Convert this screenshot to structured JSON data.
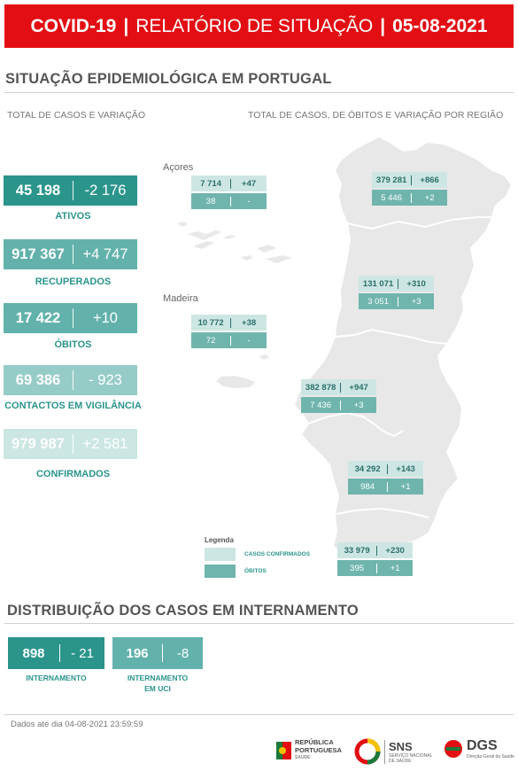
{
  "header": {
    "covid": "COVID-19",
    "sep": "|",
    "title": "RELATÓRIO DE SITUAÇÃO",
    "date": "05-08-2021"
  },
  "section1": {
    "title": "SITUAÇÃO EPIDEMIOLÓGICA EM PORTUGAL",
    "left_subtitle": "TOTAL DE CASOS E VARIAÇÃO",
    "right_subtitle": "TOTAL DE CASOS, DE ÓBITOS E VARIAÇÃO POR REGIÃO"
  },
  "kpis": [
    {
      "value": "45 198",
      "delta": "-2 176",
      "label": "ATIVOS"
    },
    {
      "value": "917 367",
      "delta": "+4 747",
      "label": "RECUPERADOS"
    },
    {
      "value": "17 422",
      "delta": "+10",
      "label": "ÓBITOS"
    },
    {
      "value": "69 386",
      "delta": "- 923",
      "label": "CONTACTOS EM VIGILÂNCIA"
    },
    {
      "value": "979 987",
      "delta": "+2 581",
      "label": "CONFIRMADOS"
    }
  ],
  "region_labels": {
    "acores": "Açores",
    "madeira": "Madeira"
  },
  "regions": [
    {
      "id": "acores",
      "cases": "7 714",
      "cases_delta": "+47",
      "deaths": "38",
      "deaths_delta": "-"
    },
    {
      "id": "madeira",
      "cases": "10 772",
      "cases_delta": "+38",
      "deaths": "72",
      "deaths_delta": "-"
    },
    {
      "id": "norte",
      "cases": "379 281",
      "cases_delta": "+866",
      "deaths": "5 446",
      "deaths_delta": "+2"
    },
    {
      "id": "centro",
      "cases": "131 071",
      "cases_delta": "+310",
      "deaths": "3 051",
      "deaths_delta": "+3"
    },
    {
      "id": "lvt",
      "cases": "382 878",
      "cases_delta": "+947",
      "deaths": "7 436",
      "deaths_delta": "+3"
    },
    {
      "id": "alentejo",
      "cases": "34 292",
      "cases_delta": "+143",
      "deaths": "984",
      "deaths_delta": "+1"
    },
    {
      "id": "algarve",
      "cases": "33 979",
      "cases_delta": "+230",
      "deaths": "395",
      "deaths_delta": "+1"
    }
  ],
  "legend": {
    "title": "Legenda",
    "cases": "CASOS CONFIRMADOS",
    "deaths": "ÓBITOS"
  },
  "section2": {
    "title": "DISTRIBUIÇÃO DOS CASOS EM INTERNAMENTO"
  },
  "hospital": [
    {
      "value": "898",
      "delta": "- 21",
      "label1": "INTERNAMENTO",
      "label2": ""
    },
    {
      "value": "196",
      "delta": "-8",
      "label1": "INTERNAMENTO",
      "label2": "EM UCI"
    }
  ],
  "footnote": "Dados até dia 04-08-2021 23:59:59",
  "logos": {
    "rp1": "REPÚBLICA",
    "rp2": "PORTUGUESA",
    "rp3": "SAÚDE",
    "sns": "SNS",
    "sns_sub1": "SERVIÇO NACIONAL",
    "sns_sub2": "DE SAÚDE",
    "dgs": "DGS",
    "dgs_sub": "Direção-Geral da Saúde"
  },
  "colors": {
    "header": "#e30e13",
    "teal_dark": "#2b958c",
    "teal_light": "#cde6e3",
    "map": "#e8e8e8"
  }
}
